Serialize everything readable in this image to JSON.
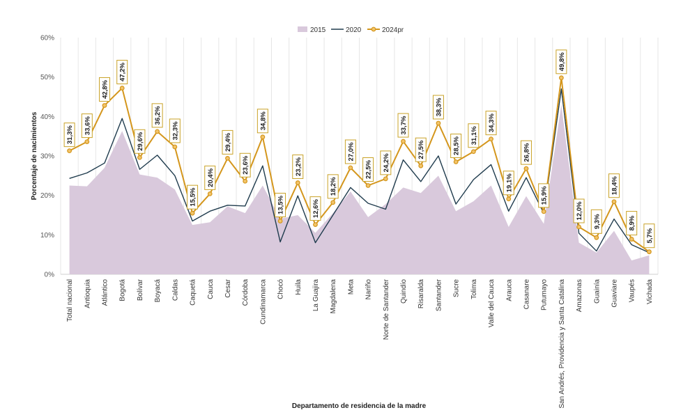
{
  "chart_data": {
    "type": "line",
    "categories": [
      "Total nacional",
      "Antioquia",
      "Atlántico",
      "Bogotá",
      "Bolívar",
      "Boyacá",
      "Caldas",
      "Caquetá",
      "Cauca",
      "Cesar",
      "Córdoba",
      "Cundinamarca",
      "Chocó",
      "Huila",
      "La Guajira",
      "Magdalena",
      "Meta",
      "Nariño",
      "Norte de Santander",
      "Quindío",
      "Risaralda",
      "Santander",
      "Sucre",
      "Tolima",
      "Valle del Cauca",
      "Arauca",
      "Casanare",
      "Putumayo",
      "San Andrés, Providencia y Santa Catalina",
      "Amazonas",
      "Guainía",
      "Guaviare",
      "Vaupés",
      "Vichada"
    ],
    "series": [
      {
        "name": "2015",
        "kind": "area",
        "color": "#d9c9dc",
        "values": [
          22.5,
          22.3,
          27,
          36.3,
          25.3,
          24.5,
          21.5,
          12.5,
          13.2,
          17.2,
          15.5,
          22.5,
          14.1,
          15,
          10.5,
          15.5,
          21,
          14.5,
          17.8,
          22,
          20.6,
          25,
          16,
          18.5,
          22.5,
          12,
          19.8,
          12.8,
          43,
          8,
          5.5,
          11,
          3.5,
          4.8
        ]
      },
      {
        "name": "2020",
        "kind": "line",
        "color": "#1f3b4d",
        "values": [
          24.3,
          25.7,
          28.2,
          39.5,
          26.6,
          30.2,
          25,
          13.5,
          16,
          17.5,
          17.3,
          27.5,
          8.2,
          19.9,
          8,
          15,
          22,
          18,
          16.5,
          29,
          23.5,
          30,
          17.8,
          24,
          27.8,
          16,
          24.5,
          15.5,
          47,
          10.4,
          5.9,
          14,
          7.5,
          5.5
        ]
      },
      {
        "name": "2024pr",
        "kind": "line-markers",
        "color": "#d4961c",
        "values": [
          31.3,
          33.6,
          42.8,
          47.2,
          29.6,
          36.2,
          32.3,
          15.5,
          20.4,
          29.4,
          23.6,
          34.8,
          13.5,
          23.2,
          12.6,
          18.2,
          27.0,
          22.5,
          24.2,
          33.7,
          27.5,
          38.3,
          28.5,
          31.1,
          34.3,
          19.1,
          26.8,
          15.9,
          49.8,
          12.0,
          9.3,
          18.4,
          8.9,
          5.7
        ],
        "labels": [
          "31,3%",
          "33,6%",
          "42,8%",
          "47,2%",
          "29,6%",
          "36,2%",
          "32,3%",
          "15,5%",
          "20,4%",
          "29,4%",
          "23,6%",
          "34,8%",
          "13,5%",
          "23,2%",
          "12,6%",
          "18,2%",
          "27,0%",
          "22,5%",
          "24,2%",
          "33,7%",
          "27,5%",
          "38,3%",
          "28,5%",
          "31,1%",
          "34,3%",
          "19,1%",
          "26,8%",
          "15,9%",
          "49,8%",
          "12,0%",
          "9,3%",
          "18,4%",
          "8,9%",
          "5,7%"
        ]
      }
    ],
    "ylim": [
      0,
      60
    ],
    "yticks": [
      "0%",
      "10%",
      "20%",
      "30%",
      "40%",
      "50%",
      "60%"
    ],
    "ylabel": "Porcentaje de nacimientos",
    "xlabel": "Departamento de residencia de la madre",
    "legend": [
      "2015",
      "2020",
      "2024pr"
    ],
    "legend_position": "top-center",
    "grid": "vertical"
  }
}
